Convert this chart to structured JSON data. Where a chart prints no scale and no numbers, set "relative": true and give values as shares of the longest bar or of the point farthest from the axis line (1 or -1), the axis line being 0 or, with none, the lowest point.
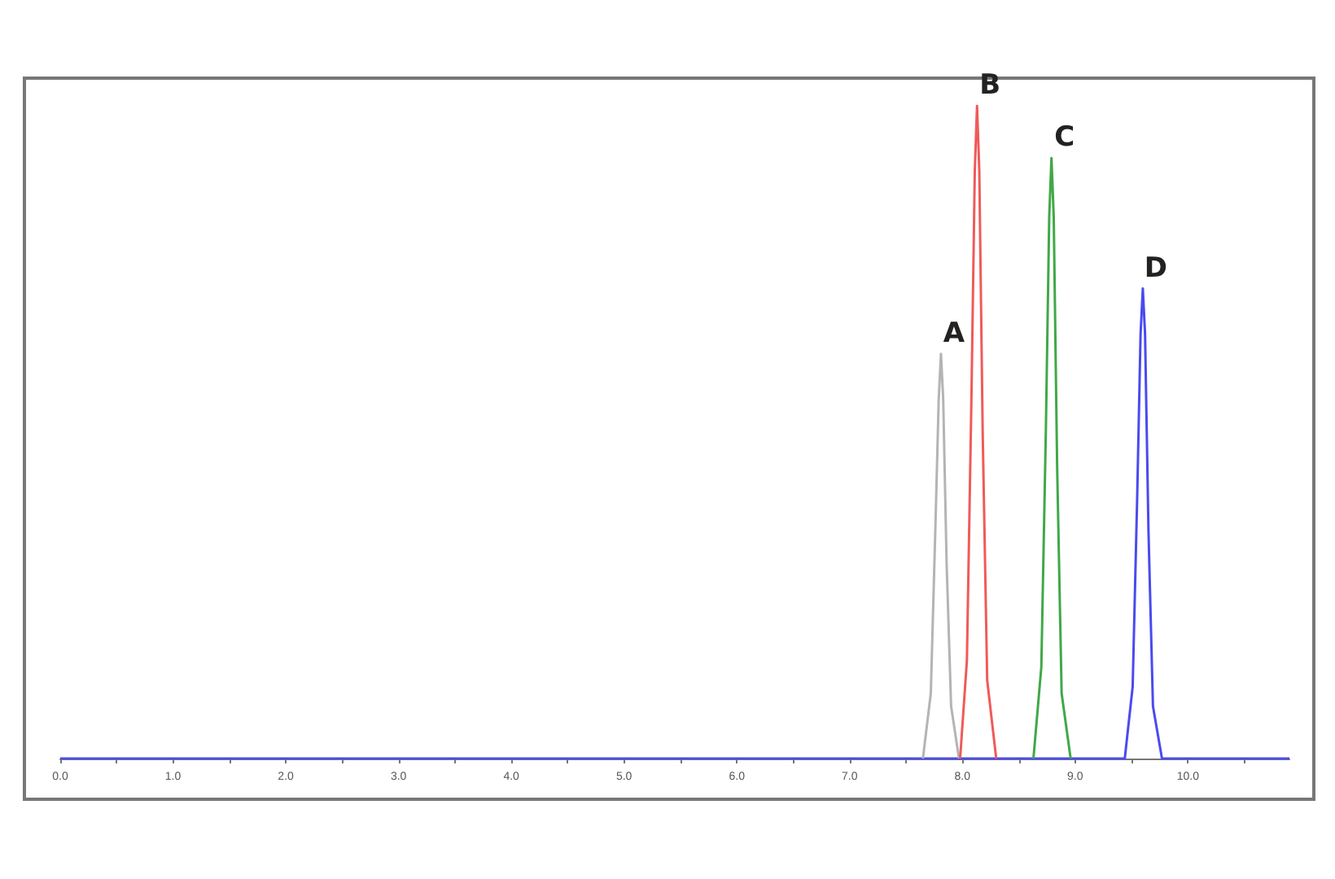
{
  "chart_data": {
    "type": "line",
    "relative": true,
    "legend": false,
    "grid": false,
    "tick_labels": "x",
    "xlim": [
      0,
      10.9
    ],
    "xticks": [
      {
        "value": 0,
        "label": "0.0"
      },
      {
        "value": 0.5,
        "label": null
      },
      {
        "value": 1,
        "label": "1.0"
      },
      {
        "value": 1.5,
        "label": null
      },
      {
        "value": 2,
        "label": "2.0"
      },
      {
        "value": 2.5,
        "label": null
      },
      {
        "value": 3,
        "label": "3.0"
      },
      {
        "value": 3.5,
        "label": null
      },
      {
        "value": 4,
        "label": "4.0"
      },
      {
        "value": 4.5,
        "label": null
      },
      {
        "value": 5,
        "label": "5.0"
      },
      {
        "value": 5.5,
        "label": null
      },
      {
        "value": 6,
        "label": "6.0"
      },
      {
        "value": 6.5,
        "label": null
      },
      {
        "value": 7,
        "label": "7.0"
      },
      {
        "value": 7.5,
        "label": null
      },
      {
        "value": 8,
        "label": "8.0"
      },
      {
        "value": 8.5,
        "label": null
      },
      {
        "value": 9,
        "label": "9.0"
      },
      {
        "value": 9.5,
        "label": null
      },
      {
        "value": 10,
        "label": "10.0"
      },
      {
        "value": 10.5,
        "label": null
      }
    ],
    "series": [
      {
        "name": "A",
        "color": "#b4b4b4",
        "x": [
          7.65,
          7.72,
          7.76,
          7.79,
          7.81,
          7.83,
          7.86,
          7.9,
          7.97
        ],
        "values": [
          0,
          0.1,
          0.35,
          0.55,
          0.62,
          0.55,
          0.3,
          0.08,
          0
        ]
      },
      {
        "name": "B",
        "color": "#f05a5a",
        "x": [
          7.98,
          8.04,
          8.08,
          8.11,
          8.13,
          8.15,
          8.18,
          8.22,
          8.3
        ],
        "values": [
          0,
          0.15,
          0.55,
          0.9,
          1,
          0.9,
          0.5,
          0.12,
          0
        ]
      },
      {
        "name": "C",
        "color": "#40a848",
        "x": [
          8.63,
          8.7,
          8.74,
          8.77,
          8.79,
          8.81,
          8.84,
          8.88,
          8.96
        ],
        "values": [
          0,
          0.14,
          0.5,
          0.83,
          0.92,
          0.83,
          0.45,
          0.1,
          0
        ]
      },
      {
        "name": "D",
        "color": "#4a4af0",
        "x": [
          0,
          9.44,
          9.51,
          9.55,
          9.58,
          9.6,
          9.62,
          9.65,
          9.69,
          9.77,
          10.9
        ],
        "values": [
          0,
          0,
          0.11,
          0.4,
          0.65,
          0.72,
          0.65,
          0.35,
          0.08,
          0,
          0
        ]
      }
    ]
  }
}
